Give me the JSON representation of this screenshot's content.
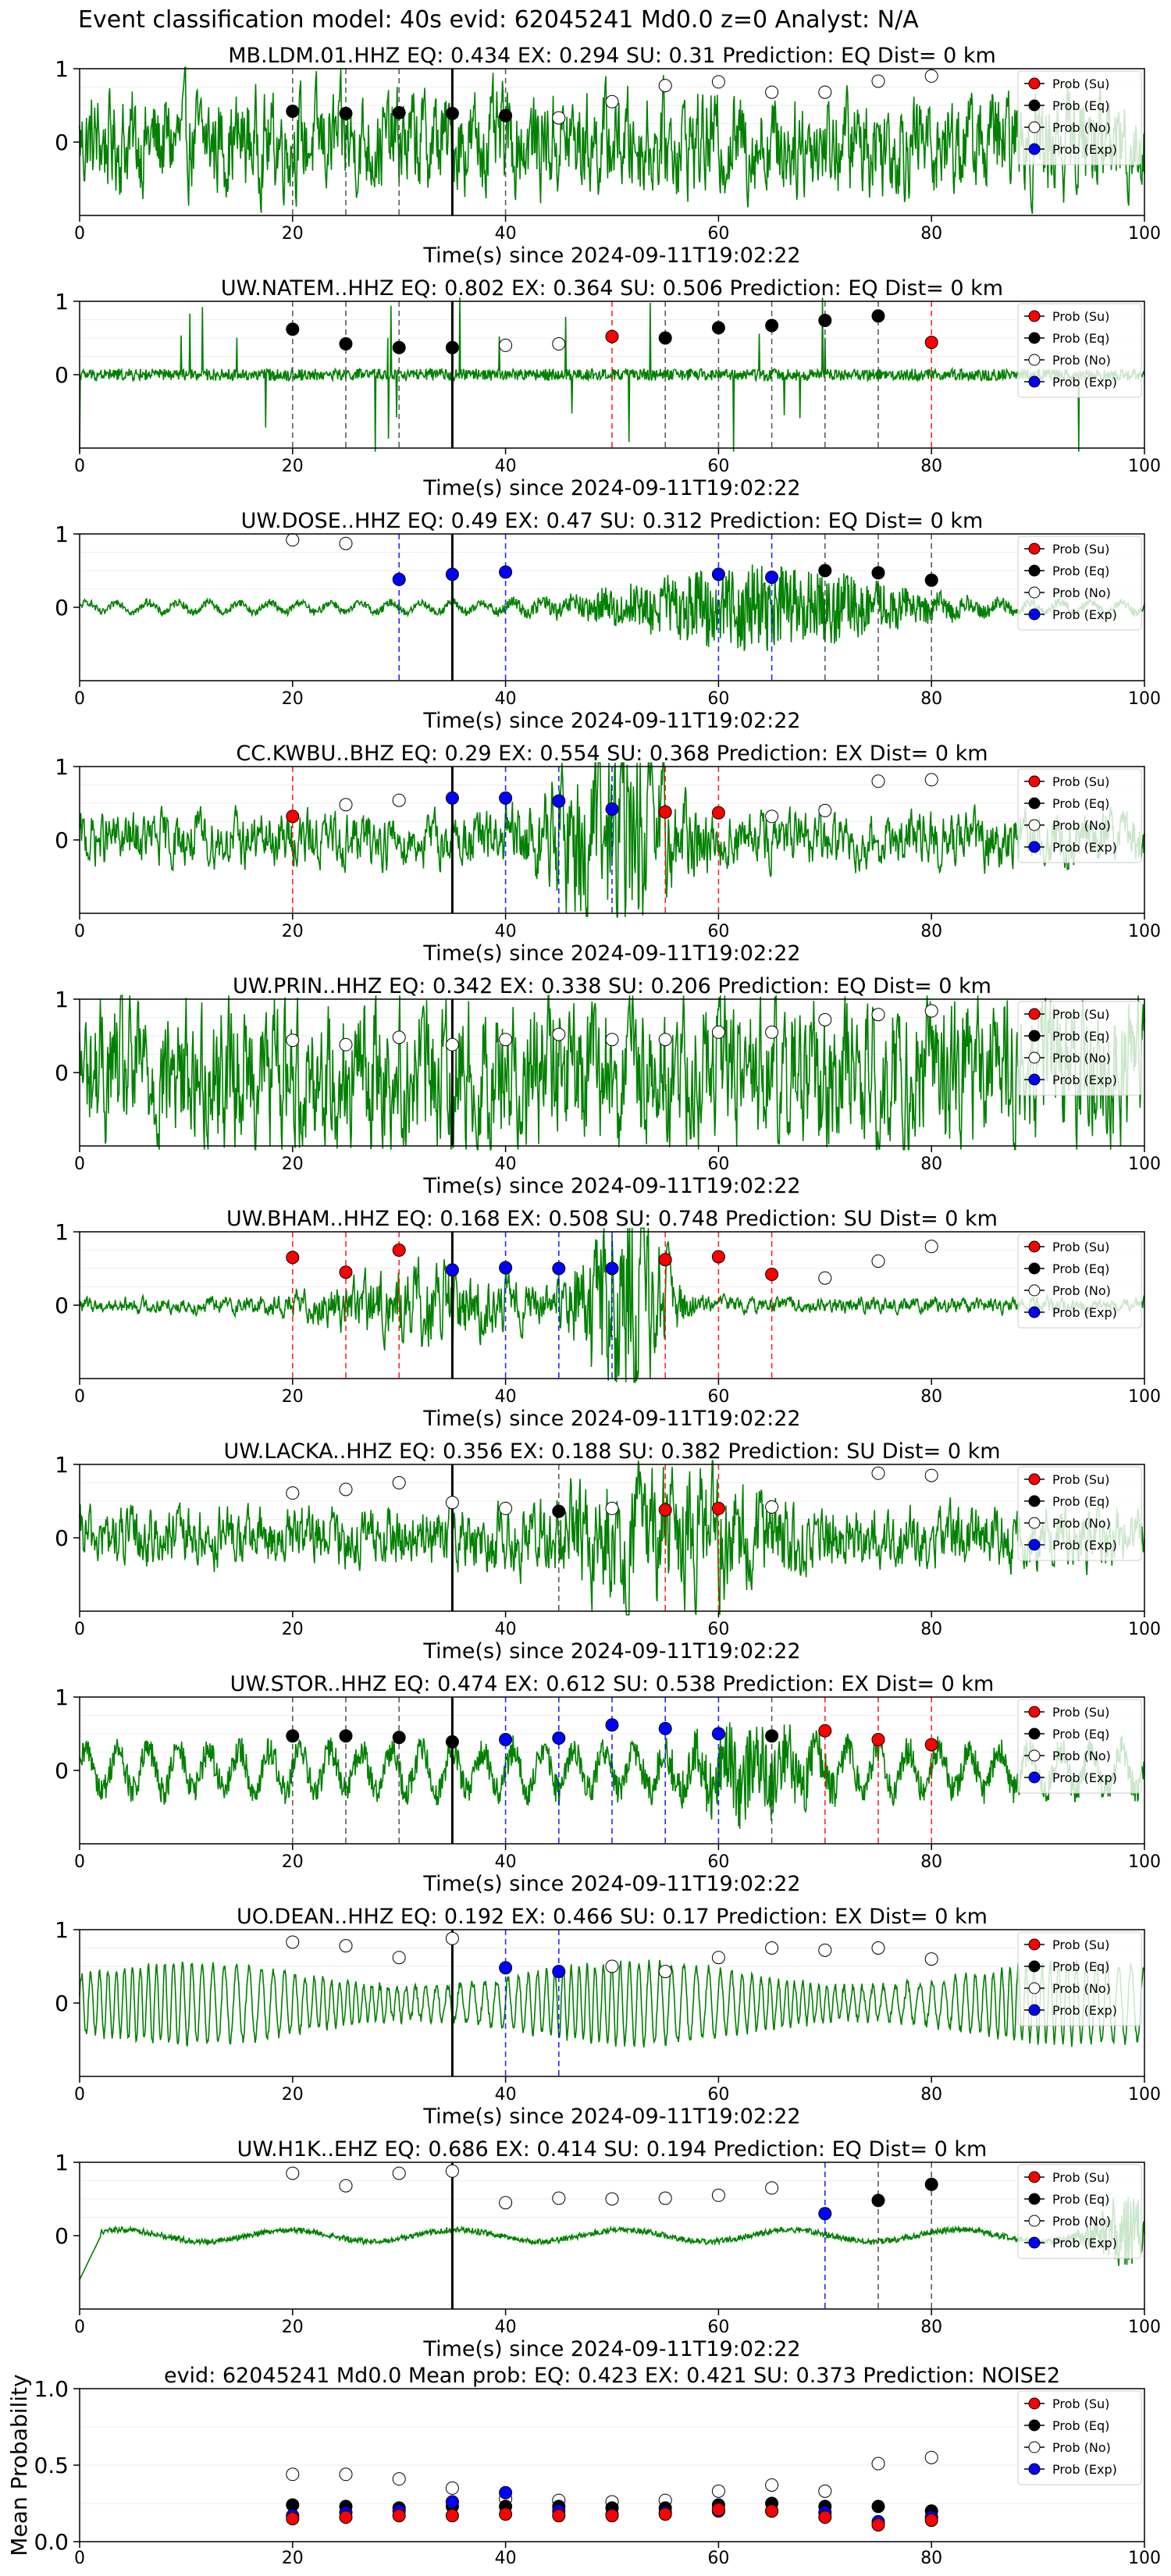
{
  "suptitle": "Event classification model: 40s evid: 62045241 Md0.0 z=0 Analyst: N/A",
  "colors": {
    "waveform": "#008000",
    "su": "#ff0000",
    "eq": "#000000",
    "no": "#ffffff",
    "exp": "#0000ff",
    "su_line": "#ff0000",
    "eq_line": "#404040",
    "exp_line": "#0000ff"
  },
  "legend": [
    "Prob (Su)",
    "Prob (Eq)",
    "Prob (No)",
    "Prob (Exp)"
  ],
  "chart_data": [
    {
      "type": "scatter",
      "panel": "station",
      "title": "MB.LDM.01.HHZ   EQ: 0.434  EX: 0.294  SU: 0.31   Prediction: EQ    Dist= 0 km",
      "xlabel": "Time(s) since 2024-09-11T19:02:22",
      "xlim": [
        0,
        100
      ],
      "xticks": [
        0,
        20,
        40,
        60,
        80,
        100
      ],
      "yticks": [
        0,
        1
      ],
      "ylim": [
        -1,
        1
      ],
      "pick_time": 35,
      "waveform": {
        "style": "broadband",
        "noise": 0.38,
        "envelope": []
      },
      "points": [
        {
          "t": 20,
          "p": 0.42,
          "c": "eq"
        },
        {
          "t": 25,
          "p": 0.39,
          "c": "eq"
        },
        {
          "t": 30,
          "p": 0.4,
          "c": "eq"
        },
        {
          "t": 35,
          "p": 0.39,
          "c": "eq"
        },
        {
          "t": 40,
          "p": 0.36,
          "c": "eq"
        },
        {
          "t": 45,
          "p": 0.33,
          "c": "no"
        },
        {
          "t": 50,
          "p": 0.55,
          "c": "no"
        },
        {
          "t": 55,
          "p": 0.77,
          "c": "no"
        },
        {
          "t": 60,
          "p": 0.82,
          "c": "no"
        },
        {
          "t": 65,
          "p": 0.68,
          "c": "no"
        },
        {
          "t": 70,
          "p": 0.68,
          "c": "no"
        },
        {
          "t": 75,
          "p": 0.83,
          "c": "no"
        },
        {
          "t": 80,
          "p": 0.9,
          "c": "no"
        }
      ]
    },
    {
      "type": "scatter",
      "panel": "station",
      "title": "UW.NATEM..HHZ   EQ: 0.802  EX: 0.364  SU: 0.506   Prediction: EQ    Dist= 0 km",
      "xlabel": "Time(s) since 2024-09-11T19:02:22",
      "xlim": [
        0,
        100
      ],
      "xticks": [
        0,
        20,
        40,
        60,
        80,
        100
      ],
      "yticks": [
        0,
        1
      ],
      "ylim": [
        -1,
        1
      ],
      "pick_time": 35,
      "waveform": {
        "style": "spiky",
        "noise": 0.08,
        "envelope": []
      },
      "points": [
        {
          "t": 20,
          "p": 0.62,
          "c": "eq"
        },
        {
          "t": 25,
          "p": 0.42,
          "c": "eq"
        },
        {
          "t": 30,
          "p": 0.37,
          "c": "eq"
        },
        {
          "t": 35,
          "p": 0.37,
          "c": "eq"
        },
        {
          "t": 40,
          "p": 0.4,
          "c": "no"
        },
        {
          "t": 45,
          "p": 0.42,
          "c": "no"
        },
        {
          "t": 50,
          "p": 0.52,
          "c": "su"
        },
        {
          "t": 55,
          "p": 0.5,
          "c": "eq"
        },
        {
          "t": 60,
          "p": 0.64,
          "c": "eq"
        },
        {
          "t": 65,
          "p": 0.67,
          "c": "eq"
        },
        {
          "t": 70,
          "p": 0.74,
          "c": "eq"
        },
        {
          "t": 75,
          "p": 0.8,
          "c": "eq"
        },
        {
          "t": 80,
          "p": 0.44,
          "c": "su"
        }
      ]
    },
    {
      "type": "scatter",
      "panel": "station",
      "title": "UW.DOSE..HHZ   EQ: 0.49  EX: 0.47  SU: 0.312   Prediction: EQ    Dist= 0 km",
      "xlabel": "Time(s) since 2024-09-11T19:02:22",
      "xlim": [
        0,
        100
      ],
      "xticks": [
        0,
        20,
        40,
        60,
        80,
        100
      ],
      "yticks": [
        0,
        1
      ],
      "ylim": [
        -1,
        1
      ],
      "pick_time": 35,
      "waveform": {
        "style": "wavy",
        "noise": 0.05,
        "envelope": [
          {
            "c": 64,
            "w": 14,
            "a": 0.5
          }
        ]
      },
      "points": [
        {
          "t": 20,
          "p": 0.92,
          "c": "no"
        },
        {
          "t": 25,
          "p": 0.87,
          "c": "no"
        },
        {
          "t": 30,
          "p": 0.38,
          "c": "exp"
        },
        {
          "t": 35,
          "p": 0.45,
          "c": "exp"
        },
        {
          "t": 40,
          "p": 0.48,
          "c": "exp"
        },
        {
          "t": 60,
          "p": 0.45,
          "c": "exp"
        },
        {
          "t": 65,
          "p": 0.41,
          "c": "exp"
        },
        {
          "t": 70,
          "p": 0.5,
          "c": "eq"
        },
        {
          "t": 75,
          "p": 0.47,
          "c": "eq"
        },
        {
          "t": 80,
          "p": 0.37,
          "c": "eq"
        }
      ]
    },
    {
      "type": "scatter",
      "panel": "station",
      "title": "CC.KWBU..BHZ   EQ: 0.29  EX: 0.554  SU: 0.368   Prediction: EX    Dist= 0 km",
      "xlabel": "Time(s) since 2024-09-11T19:02:22",
      "xlim": [
        0,
        100
      ],
      "xticks": [
        0,
        20,
        40,
        60,
        80,
        100
      ],
      "yticks": [
        0,
        1
      ],
      "ylim": [
        -1,
        1
      ],
      "pick_time": 35,
      "waveform": {
        "style": "broadband",
        "noise": 0.2,
        "envelope": [
          {
            "c": 50,
            "w": 6,
            "a": 0.6
          }
        ]
      },
      "points": [
        {
          "t": 20,
          "p": 0.32,
          "c": "su"
        },
        {
          "t": 25,
          "p": 0.48,
          "c": "no"
        },
        {
          "t": 30,
          "p": 0.54,
          "c": "no"
        },
        {
          "t": 35,
          "p": 0.57,
          "c": "exp"
        },
        {
          "t": 40,
          "p": 0.57,
          "c": "exp"
        },
        {
          "t": 45,
          "p": 0.53,
          "c": "exp"
        },
        {
          "t": 50,
          "p": 0.42,
          "c": "exp"
        },
        {
          "t": 55,
          "p": 0.38,
          "c": "su"
        },
        {
          "t": 60,
          "p": 0.37,
          "c": "su"
        },
        {
          "t": 65,
          "p": 0.32,
          "c": "no"
        },
        {
          "t": 70,
          "p": 0.4,
          "c": "no"
        },
        {
          "t": 75,
          "p": 0.8,
          "c": "no"
        },
        {
          "t": 80,
          "p": 0.82,
          "c": "no"
        }
      ]
    },
    {
      "type": "scatter",
      "panel": "station",
      "title": "UW.PRIN..HHZ   EQ: 0.342  EX: 0.338  SU: 0.206   Prediction: EQ    Dist= 0 km",
      "xlabel": "Time(s) since 2024-09-11T19:02:22",
      "xlim": [
        0,
        100
      ],
      "xticks": [
        0,
        20,
        40,
        60,
        80,
        100
      ],
      "yticks": [
        0,
        1
      ],
      "ylim": [
        -1,
        1
      ],
      "pick_time": 35,
      "waveform": {
        "style": "broadband",
        "noise": 0.55,
        "envelope": []
      },
      "points": [
        {
          "t": 20,
          "p": 0.44,
          "c": "no"
        },
        {
          "t": 25,
          "p": 0.38,
          "c": "no"
        },
        {
          "t": 30,
          "p": 0.48,
          "c": "no"
        },
        {
          "t": 35,
          "p": 0.38,
          "c": "no"
        },
        {
          "t": 40,
          "p": 0.45,
          "c": "no"
        },
        {
          "t": 45,
          "p": 0.52,
          "c": "no"
        },
        {
          "t": 50,
          "p": 0.45,
          "c": "no"
        },
        {
          "t": 55,
          "p": 0.45,
          "c": "no"
        },
        {
          "t": 60,
          "p": 0.55,
          "c": "no"
        },
        {
          "t": 65,
          "p": 0.55,
          "c": "no"
        },
        {
          "t": 70,
          "p": 0.72,
          "c": "no"
        },
        {
          "t": 75,
          "p": 0.79,
          "c": "no"
        },
        {
          "t": 80,
          "p": 0.84,
          "c": "no"
        }
      ]
    },
    {
      "type": "scatter",
      "panel": "station",
      "title": "UW.BHAM..HHZ   EQ: 0.168  EX: 0.508  SU: 0.748   Prediction: SU    Dist= 0 km",
      "xlabel": "Time(s) since 2024-09-11T19:02:22",
      "xlim": [
        0,
        100
      ],
      "xticks": [
        0,
        20,
        40,
        60,
        80,
        100
      ],
      "yticks": [
        0,
        1
      ],
      "ylim": [
        -1,
        1
      ],
      "pick_time": 35,
      "waveform": {
        "style": "broadband",
        "noise": 0.06,
        "envelope": [
          {
            "c": 51,
            "w": 4,
            "a": 0.85
          },
          {
            "c": 33,
            "w": 10,
            "a": 0.25
          }
        ]
      },
      "points": [
        {
          "t": 20,
          "p": 0.65,
          "c": "su"
        },
        {
          "t": 25,
          "p": 0.45,
          "c": "su"
        },
        {
          "t": 30,
          "p": 0.75,
          "c": "su"
        },
        {
          "t": 35,
          "p": 0.48,
          "c": "exp"
        },
        {
          "t": 40,
          "p": 0.51,
          "c": "exp"
        },
        {
          "t": 45,
          "p": 0.5,
          "c": "exp"
        },
        {
          "t": 50,
          "p": 0.5,
          "c": "exp"
        },
        {
          "t": 55,
          "p": 0.62,
          "c": "su"
        },
        {
          "t": 60,
          "p": 0.66,
          "c": "su"
        },
        {
          "t": 65,
          "p": 0.42,
          "c": "su"
        },
        {
          "t": 70,
          "p": 0.37,
          "c": "no"
        },
        {
          "t": 75,
          "p": 0.6,
          "c": "no"
        },
        {
          "t": 80,
          "p": 0.8,
          "c": "no"
        }
      ]
    },
    {
      "type": "scatter",
      "panel": "station",
      "title": "UW.LACKA..HHZ   EQ: 0.356  EX: 0.188  SU: 0.382   Prediction: SU    Dist= 0 km",
      "xlabel": "Time(s) since 2024-09-11T19:02:22",
      "xlim": [
        0,
        100
      ],
      "xticks": [
        0,
        20,
        40,
        60,
        80,
        100
      ],
      "yticks": [
        0,
        1
      ],
      "ylim": [
        -1,
        1
      ],
      "pick_time": 35,
      "waveform": {
        "style": "broadband",
        "noise": 0.22,
        "envelope": [
          {
            "c": 55,
            "w": 10,
            "a": 0.3
          }
        ]
      },
      "points": [
        {
          "t": 20,
          "p": 0.61,
          "c": "no"
        },
        {
          "t": 25,
          "p": 0.66,
          "c": "no"
        },
        {
          "t": 30,
          "p": 0.75,
          "c": "no"
        },
        {
          "t": 35,
          "p": 0.48,
          "c": "no"
        },
        {
          "t": 40,
          "p": 0.4,
          "c": "no"
        },
        {
          "t": 45,
          "p": 0.36,
          "c": "eq"
        },
        {
          "t": 50,
          "p": 0.4,
          "c": "no"
        },
        {
          "t": 55,
          "p": 0.38,
          "c": "su"
        },
        {
          "t": 60,
          "p": 0.4,
          "c": "su"
        },
        {
          "t": 65,
          "p": 0.42,
          "c": "no"
        },
        {
          "t": 75,
          "p": 0.88,
          "c": "no"
        },
        {
          "t": 80,
          "p": 0.85,
          "c": "no"
        }
      ]
    },
    {
      "type": "scatter",
      "panel": "station",
      "title": "UW.STOR..HHZ   EQ: 0.474  EX: 0.612  SU: 0.538   Prediction: EX    Dist= 0 km",
      "xlabel": "Time(s) since 2024-09-11T19:02:22",
      "xlim": [
        0,
        100
      ],
      "xticks": [
        0,
        20,
        40,
        60,
        80,
        100
      ],
      "yticks": [
        0,
        1
      ],
      "ylim": [
        -1,
        1
      ],
      "pick_time": 35,
      "waveform": {
        "style": "wavy",
        "noise": 0.2,
        "envelope": [
          {
            "c": 63,
            "w": 6,
            "a": 0.35
          }
        ]
      },
      "points": [
        {
          "t": 20,
          "p": 0.47,
          "c": "eq"
        },
        {
          "t": 25,
          "p": 0.47,
          "c": "eq"
        },
        {
          "t": 30,
          "p": 0.45,
          "c": "eq"
        },
        {
          "t": 35,
          "p": 0.39,
          "c": "eq"
        },
        {
          "t": 40,
          "p": 0.42,
          "c": "exp"
        },
        {
          "t": 45,
          "p": 0.44,
          "c": "exp"
        },
        {
          "t": 50,
          "p": 0.62,
          "c": "exp"
        },
        {
          "t": 55,
          "p": 0.57,
          "c": "exp"
        },
        {
          "t": 60,
          "p": 0.5,
          "c": "exp"
        },
        {
          "t": 65,
          "p": 0.47,
          "c": "eq"
        },
        {
          "t": 70,
          "p": 0.54,
          "c": "su"
        },
        {
          "t": 75,
          "p": 0.42,
          "c": "su"
        },
        {
          "t": 80,
          "p": 0.35,
          "c": "su"
        }
      ]
    },
    {
      "type": "scatter",
      "panel": "station",
      "title": "UO.DEAN..HHZ   EQ: 0.192  EX: 0.466  SU: 0.17   Prediction: EX    Dist= 0 km",
      "xlabel": "Time(s) since 2024-09-11T19:02:22",
      "xlim": [
        0,
        100
      ],
      "xticks": [
        0,
        20,
        40,
        60,
        80,
        100
      ],
      "yticks": [
        0,
        1
      ],
      "ylim": [
        -1,
        1
      ],
      "pick_time": 35,
      "waveform": {
        "style": "swell",
        "noise": 0.05,
        "envelope": []
      },
      "points": [
        {
          "t": 20,
          "p": 0.83,
          "c": "no"
        },
        {
          "t": 25,
          "p": 0.78,
          "c": "no"
        },
        {
          "t": 30,
          "p": 0.62,
          "c": "no"
        },
        {
          "t": 35,
          "p": 0.88,
          "c": "no"
        },
        {
          "t": 40,
          "p": 0.48,
          "c": "exp"
        },
        {
          "t": 45,
          "p": 0.43,
          "c": "exp"
        },
        {
          "t": 50,
          "p": 0.5,
          "c": "no"
        },
        {
          "t": 55,
          "p": 0.43,
          "c": "no"
        },
        {
          "t": 60,
          "p": 0.62,
          "c": "no"
        },
        {
          "t": 65,
          "p": 0.75,
          "c": "no"
        },
        {
          "t": 70,
          "p": 0.72,
          "c": "no"
        },
        {
          "t": 75,
          "p": 0.75,
          "c": "no"
        },
        {
          "t": 80,
          "p": 0.6,
          "c": "no"
        }
      ]
    },
    {
      "type": "scatter",
      "panel": "station",
      "title": "UW.H1K..EHZ   EQ: 0.686  EX: 0.414  SU: 0.194   Prediction: EQ    Dist= 0 km",
      "xlabel": "Time(s) since 2024-09-11T19:02:22",
      "xlim": [
        0,
        100
      ],
      "xticks": [
        0,
        20,
        40,
        60,
        80,
        100
      ],
      "yticks": [
        0,
        1
      ],
      "ylim": [
        -1,
        1
      ],
      "pick_time": 35,
      "waveform": {
        "style": "quiet",
        "noise": 0.05,
        "envelope": [
          {
            "c": 98,
            "w": 3,
            "a": 0.6
          }
        ]
      },
      "points": [
        {
          "t": 20,
          "p": 0.85,
          "c": "no"
        },
        {
          "t": 25,
          "p": 0.68,
          "c": "no"
        },
        {
          "t": 30,
          "p": 0.85,
          "c": "no"
        },
        {
          "t": 35,
          "p": 0.88,
          "c": "no"
        },
        {
          "t": 40,
          "p": 0.45,
          "c": "no"
        },
        {
          "t": 45,
          "p": 0.51,
          "c": "no"
        },
        {
          "t": 50,
          "p": 0.5,
          "c": "no"
        },
        {
          "t": 55,
          "p": 0.51,
          "c": "no"
        },
        {
          "t": 60,
          "p": 0.55,
          "c": "no"
        },
        {
          "t": 65,
          "p": 0.65,
          "c": "no"
        },
        {
          "t": 70,
          "p": 0.3,
          "c": "exp"
        },
        {
          "t": 75,
          "p": 0.48,
          "c": "eq"
        },
        {
          "t": 80,
          "p": 0.7,
          "c": "eq"
        }
      ]
    },
    {
      "type": "scatter",
      "panel": "mean",
      "title": "evid: 62045241  Md0.0   Mean prob:   EQ: 0.423  EX: 0.421  SU: 0.373   Prediction: NOISE2",
      "ylabel": "Mean Probability",
      "xlim": [
        0,
        100
      ],
      "xticks": [
        0,
        20,
        40,
        60,
        80,
        100
      ],
      "ylim": [
        0,
        1
      ],
      "yticks": [
        0.0,
        0.5,
        1.0
      ],
      "times": [
        20,
        25,
        30,
        35,
        40,
        45,
        50,
        55,
        60,
        65,
        70,
        75,
        80
      ],
      "series": [
        {
          "key": "no",
          "values": [
            0.44,
            0.44,
            0.41,
            0.35,
            0.28,
            0.27,
            0.26,
            0.27,
            0.33,
            0.37,
            0.33,
            0.51,
            0.55
          ]
        },
        {
          "key": "eq",
          "values": [
            0.24,
            0.23,
            0.22,
            0.23,
            0.23,
            0.23,
            0.22,
            0.22,
            0.24,
            0.25,
            0.23,
            0.23,
            0.2
          ]
        },
        {
          "key": "exp",
          "values": [
            0.17,
            0.19,
            0.2,
            0.26,
            0.32,
            0.2,
            0.18,
            0.19,
            0.2,
            0.2,
            0.19,
            0.13,
            0.16
          ]
        },
        {
          "key": "su",
          "values": [
            0.15,
            0.16,
            0.17,
            0.17,
            0.18,
            0.17,
            0.17,
            0.18,
            0.21,
            0.2,
            0.16,
            0.11,
            0.14
          ]
        }
      ]
    }
  ]
}
